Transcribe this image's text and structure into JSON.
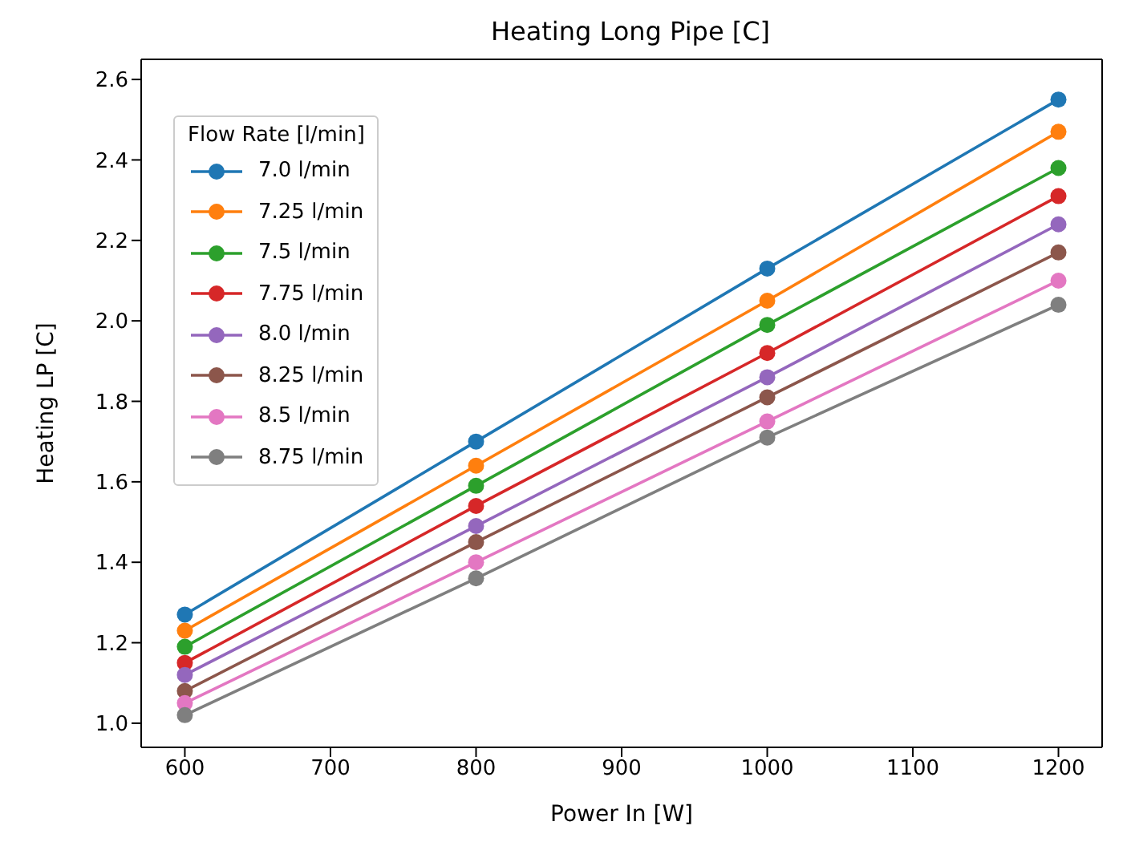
{
  "chart_data": {
    "type": "line",
    "title": "Heating Long Pipe [C]",
    "xlabel": "Power In [W]",
    "ylabel": "Heating LP [C]",
    "legend_title": "Flow Rate [l/min]",
    "legend": "top left",
    "marker": "circle",
    "line_style": "solid",
    "grid": false,
    "x": [
      600,
      800,
      1000,
      1200
    ],
    "series": [
      {
        "name": "7.0 l/min",
        "color": "#1f77b4",
        "values": [
          1.27,
          1.7,
          2.13,
          2.55
        ]
      },
      {
        "name": "7.25 l/min",
        "color": "#ff7f0e",
        "values": [
          1.23,
          1.64,
          2.05,
          2.47
        ]
      },
      {
        "name": "7.5 l/min",
        "color": "#2ca02c",
        "values": [
          1.19,
          1.59,
          1.99,
          2.38
        ]
      },
      {
        "name": "7.75 l/min",
        "color": "#d62728",
        "values": [
          1.15,
          1.54,
          1.92,
          2.31
        ]
      },
      {
        "name": "8.0 l/min",
        "color": "#9467bd",
        "values": [
          1.12,
          1.49,
          1.86,
          2.24
        ]
      },
      {
        "name": "8.25 l/min",
        "color": "#8c564b",
        "values": [
          1.08,
          1.45,
          1.81,
          2.17
        ]
      },
      {
        "name": "8.5 l/min",
        "color": "#e377c2",
        "values": [
          1.05,
          1.4,
          1.75,
          2.1
        ]
      },
      {
        "name": "8.75 l/min",
        "color": "#7f7f7f",
        "values": [
          1.02,
          1.36,
          1.71,
          2.04
        ]
      }
    ],
    "xlim": [
      570,
      1230
    ],
    "xticks": [
      600,
      700,
      800,
      900,
      1000,
      1100,
      1200
    ],
    "ylim": [
      0.94,
      2.65
    ],
    "yticks": [
      {
        "value": 1,
        "label": "1.0"
      },
      1.2,
      1.4,
      1.6,
      1.8,
      {
        "value": 2,
        "label": "2.0"
      },
      2.2,
      2.4,
      2.6
    ]
  }
}
